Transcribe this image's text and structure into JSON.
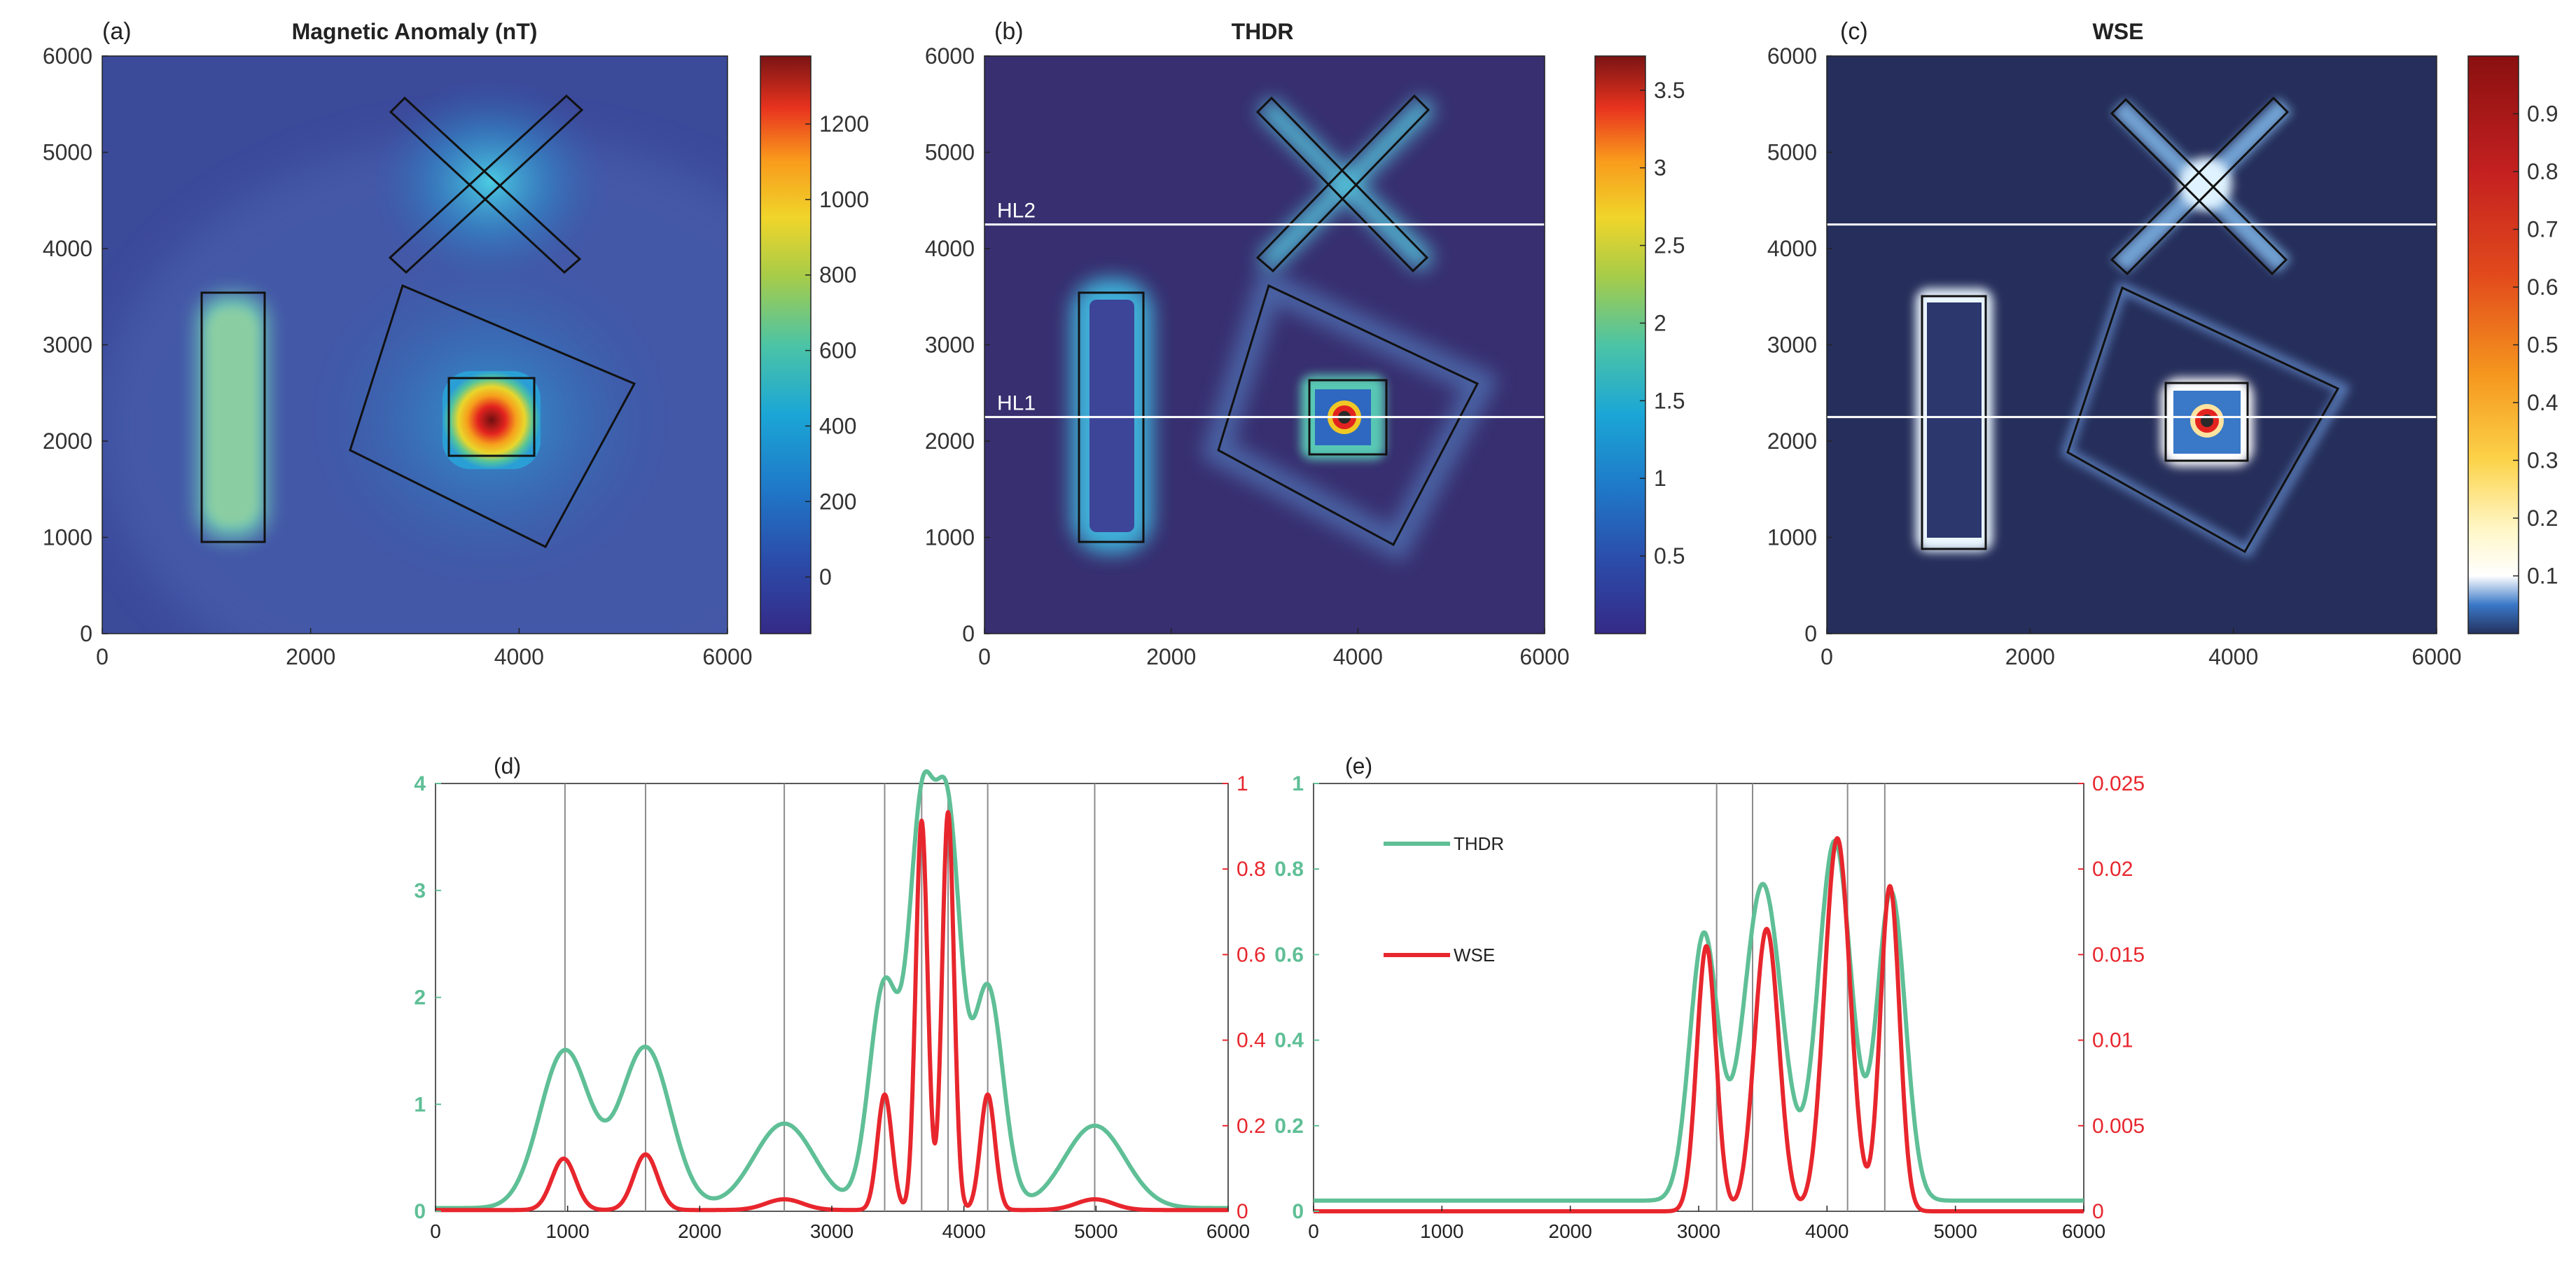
{
  "colors": {
    "thdr": "#5fbf96",
    "wse": "#e8262d",
    "axis_text": "#333333",
    "frame": "#222222",
    "vline": "#8c8c8c",
    "grid_line": "#ffffff"
  },
  "chart_data": [
    {
      "id": "a",
      "type": "heatmap",
      "label": "(a)",
      "title": "Magnetic Anomaly (nT)",
      "xlim": [
        0,
        6000
      ],
      "ylim": [
        0,
        6000
      ],
      "xticks": [
        0,
        2000,
        4000,
        6000
      ],
      "yticks": [
        0,
        1000,
        2000,
        3000,
        4000,
        5000,
        6000
      ],
      "colormap": "parula-like",
      "colorbar": {
        "min": -150,
        "max": 1380,
        "ticks": [
          0,
          200,
          400,
          600,
          800,
          1000,
          1200
        ]
      },
      "hlines": []
    },
    {
      "id": "b",
      "type": "heatmap",
      "label": "(b)",
      "title": "THDR",
      "xlim": [
        0,
        6000
      ],
      "ylim": [
        0,
        6000
      ],
      "xticks": [
        0,
        2000,
        4000,
        6000
      ],
      "yticks": [
        0,
        1000,
        2000,
        3000,
        4000,
        5000,
        6000
      ],
      "colormap": "parula-like",
      "colorbar": {
        "min": 0,
        "max": 3.72,
        "ticks": [
          0.5,
          1,
          1.5,
          2,
          2.5,
          3,
          3.5
        ]
      },
      "hlines": [
        {
          "y": 4250,
          "label": "HL2"
        },
        {
          "y": 2250,
          "label": "HL1"
        }
      ]
    },
    {
      "id": "c",
      "type": "heatmap",
      "label": "(c)",
      "title": "WSE",
      "xlim": [
        0,
        6000
      ],
      "ylim": [
        0,
        6000
      ],
      "xticks": [
        0,
        2000,
        4000,
        6000
      ],
      "yticks": [
        0,
        1000,
        2000,
        3000,
        4000,
        5000,
        6000
      ],
      "colormap": "navy-white-yellow-red",
      "colorbar": {
        "min": 0,
        "max": 1,
        "ticks": [
          0.1,
          0.2,
          0.3,
          0.4,
          0.5,
          0.6,
          0.7,
          0.8,
          0.9
        ]
      },
      "hlines": [
        {
          "y": 4250,
          "label": ""
        },
        {
          "y": 2250,
          "label": ""
        }
      ]
    },
    {
      "id": "d",
      "type": "line",
      "label": "(d)",
      "xlim": [
        0,
        6000
      ],
      "xticks": [
        0,
        1000,
        2000,
        3000,
        4000,
        5000,
        6000
      ],
      "ylim_left": [
        0,
        4
      ],
      "yticks_left": [
        0,
        1,
        2,
        3,
        4
      ],
      "ylim_right": [
        0,
        1
      ],
      "yticks_right": [
        0,
        0.2,
        0.4,
        0.6,
        0.8,
        1
      ],
      "vlines": [
        980,
        1590,
        2640,
        3400,
        3680,
        3880,
        4180,
        4990
      ],
      "series": [
        {
          "name": "THDR",
          "axis": "left",
          "base": 0.03,
          "peaks": [
            [
              980,
              1.47,
              190
            ],
            [
              1590,
              1.5,
              190
            ],
            [
              2640,
              0.79,
              230
            ],
            [
              3400,
              2.1,
              115
            ],
            [
              3680,
              3.5,
              95
            ],
            [
              3880,
              3.45,
              95
            ],
            [
              4180,
              2.07,
              115
            ],
            [
              4990,
              0.77,
              230
            ]
          ]
        },
        {
          "name": "WSE",
          "axis": "right",
          "base": 0.003,
          "peaks": [
            [
              970,
              0.12,
              90
            ],
            [
              1590,
              0.13,
              90
            ],
            [
              2640,
              0.025,
              140
            ],
            [
              3400,
              0.27,
              55
            ],
            [
              3680,
              0.91,
              45
            ],
            [
              3880,
              0.93,
              45
            ],
            [
              4180,
              0.27,
              55
            ],
            [
              4990,
              0.025,
              140
            ]
          ]
        }
      ]
    },
    {
      "id": "e",
      "type": "line",
      "label": "(e)",
      "xlim": [
        0,
        6000
      ],
      "xticks": [
        0,
        1000,
        2000,
        3000,
        4000,
        5000,
        6000
      ],
      "ylim_left": [
        0,
        1
      ],
      "yticks_left": [
        0,
        0.2,
        0.4,
        0.6,
        0.8,
        1
      ],
      "ylim_right": [
        0,
        0.025
      ],
      "yticks_right": [
        0,
        0.005,
        0.01,
        0.015,
        0.02,
        0.025
      ],
      "vlines": [
        3140,
        3420,
        4160,
        4450
      ],
      "legend": {
        "position": "top-left",
        "entries": [
          "THDR",
          "WSE"
        ]
      },
      "series": [
        {
          "name": "THDR",
          "axis": "left",
          "base": 0.025,
          "peaks": [
            [
              3040,
              0.62,
              110
            ],
            [
              3500,
              0.74,
              150
            ],
            [
              4060,
              0.84,
              130
            ],
            [
              4500,
              0.72,
              110
            ]
          ]
        },
        {
          "name": "WSE",
          "axis": "right",
          "base": 0.0,
          "peaks": [
            [
              3060,
              0.0155,
              75
            ],
            [
              3530,
              0.0165,
              95
            ],
            [
              4080,
              0.0218,
              100
            ],
            [
              4490,
              0.019,
              75
            ]
          ]
        }
      ]
    }
  ]
}
